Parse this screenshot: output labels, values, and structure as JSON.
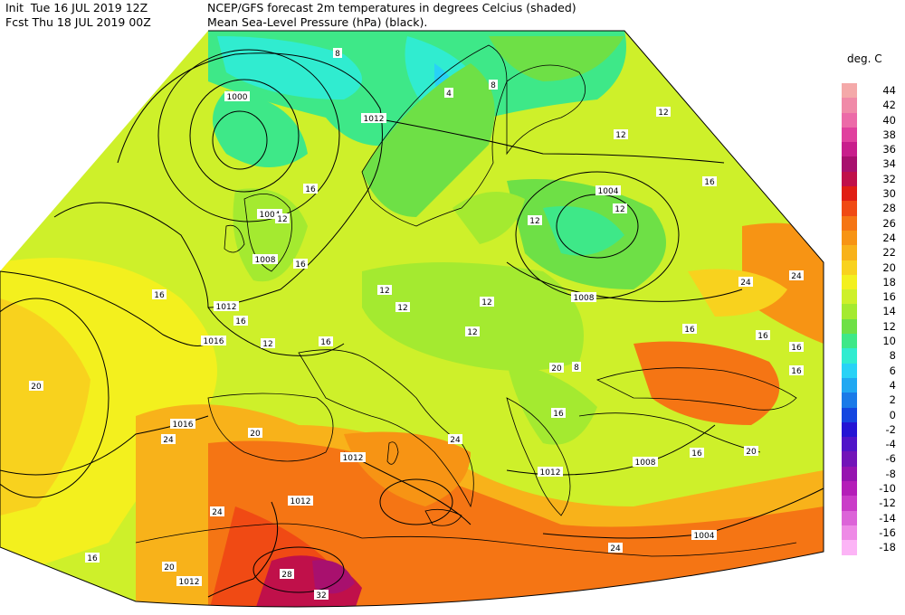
{
  "header": {
    "init_line": "Init  Tue 16 JUL 2019 12Z",
    "fcst_line": "Fcst Thu 18 JUL 2019 00Z",
    "title_line1": "NCEP/GFS forecast 2m temperatures in degrees Celcius (shaded)",
    "title_line2": "Mean Sea-Level Pressure (hPa) (black)."
  },
  "legend": {
    "title": "deg. C",
    "entries": [
      {
        "label": "44",
        "color": "#f4a9a9"
      },
      {
        "label": "42",
        "color": "#f08aa8"
      },
      {
        "label": "40",
        "color": "#ec6aa8"
      },
      {
        "label": "38",
        "color": "#e0409e"
      },
      {
        "label": "36",
        "color": "#c81e8c"
      },
      {
        "label": "34",
        "color": "#a8106e"
      },
      {
        "label": "32",
        "color": "#c0104a"
      },
      {
        "label": "30",
        "color": "#e01e14"
      },
      {
        "label": "28",
        "color": "#f04a14"
      },
      {
        "label": "26",
        "color": "#f57514"
      },
      {
        "label": "24",
        "color": "#f79414"
      },
      {
        "label": "22",
        "color": "#f8b21a"
      },
      {
        "label": "20",
        "color": "#f8d21e"
      },
      {
        "label": "18",
        "color": "#f3f01e"
      },
      {
        "label": "16",
        "color": "#cef02a"
      },
      {
        "label": "14",
        "color": "#a4ea30"
      },
      {
        "label": "12",
        "color": "#6ee046"
      },
      {
        "label": "10",
        "color": "#3ee888"
      },
      {
        "label": "8",
        "color": "#30ecd0"
      },
      {
        "label": "6",
        "color": "#28d2f6"
      },
      {
        "label": "4",
        "color": "#20a8f2"
      },
      {
        "label": "2",
        "color": "#1a7ae8"
      },
      {
        "label": "0",
        "color": "#1446e0"
      },
      {
        "label": "-2",
        "color": "#2414d4"
      },
      {
        "label": "-4",
        "color": "#5014c8"
      },
      {
        "label": "-6",
        "color": "#7214b8"
      },
      {
        "label": "-8",
        "color": "#9614b0"
      },
      {
        "label": "-10",
        "color": "#b41eb8"
      },
      {
        "label": "-12",
        "color": "#ca3cc8"
      },
      {
        "label": "-14",
        "color": "#dc64d8"
      },
      {
        "label": "-16",
        "color": "#ee8ae6"
      },
      {
        "label": "-18",
        "color": "#fcb4f6"
      }
    ]
  },
  "isobars": [
    "1000",
    "1012",
    "1004",
    "1008",
    "1008",
    "1012",
    "1016",
    "1016",
    "1012",
    "1012",
    "1012",
    "1012",
    "1008",
    "1004",
    "1004"
  ],
  "temp_labels": [
    "8",
    "4",
    "8",
    "12",
    "12",
    "12",
    "16",
    "16",
    "12",
    "12",
    "16",
    "12",
    "16",
    "16",
    "12",
    "16",
    "20",
    "20",
    "24",
    "24",
    "28",
    "32",
    "24",
    "20",
    "16",
    "20",
    "16",
    "24",
    "24",
    "16",
    "12",
    "8",
    "12",
    "16",
    "16",
    "16",
    "24",
    "20",
    "16",
    "12"
  ]
}
